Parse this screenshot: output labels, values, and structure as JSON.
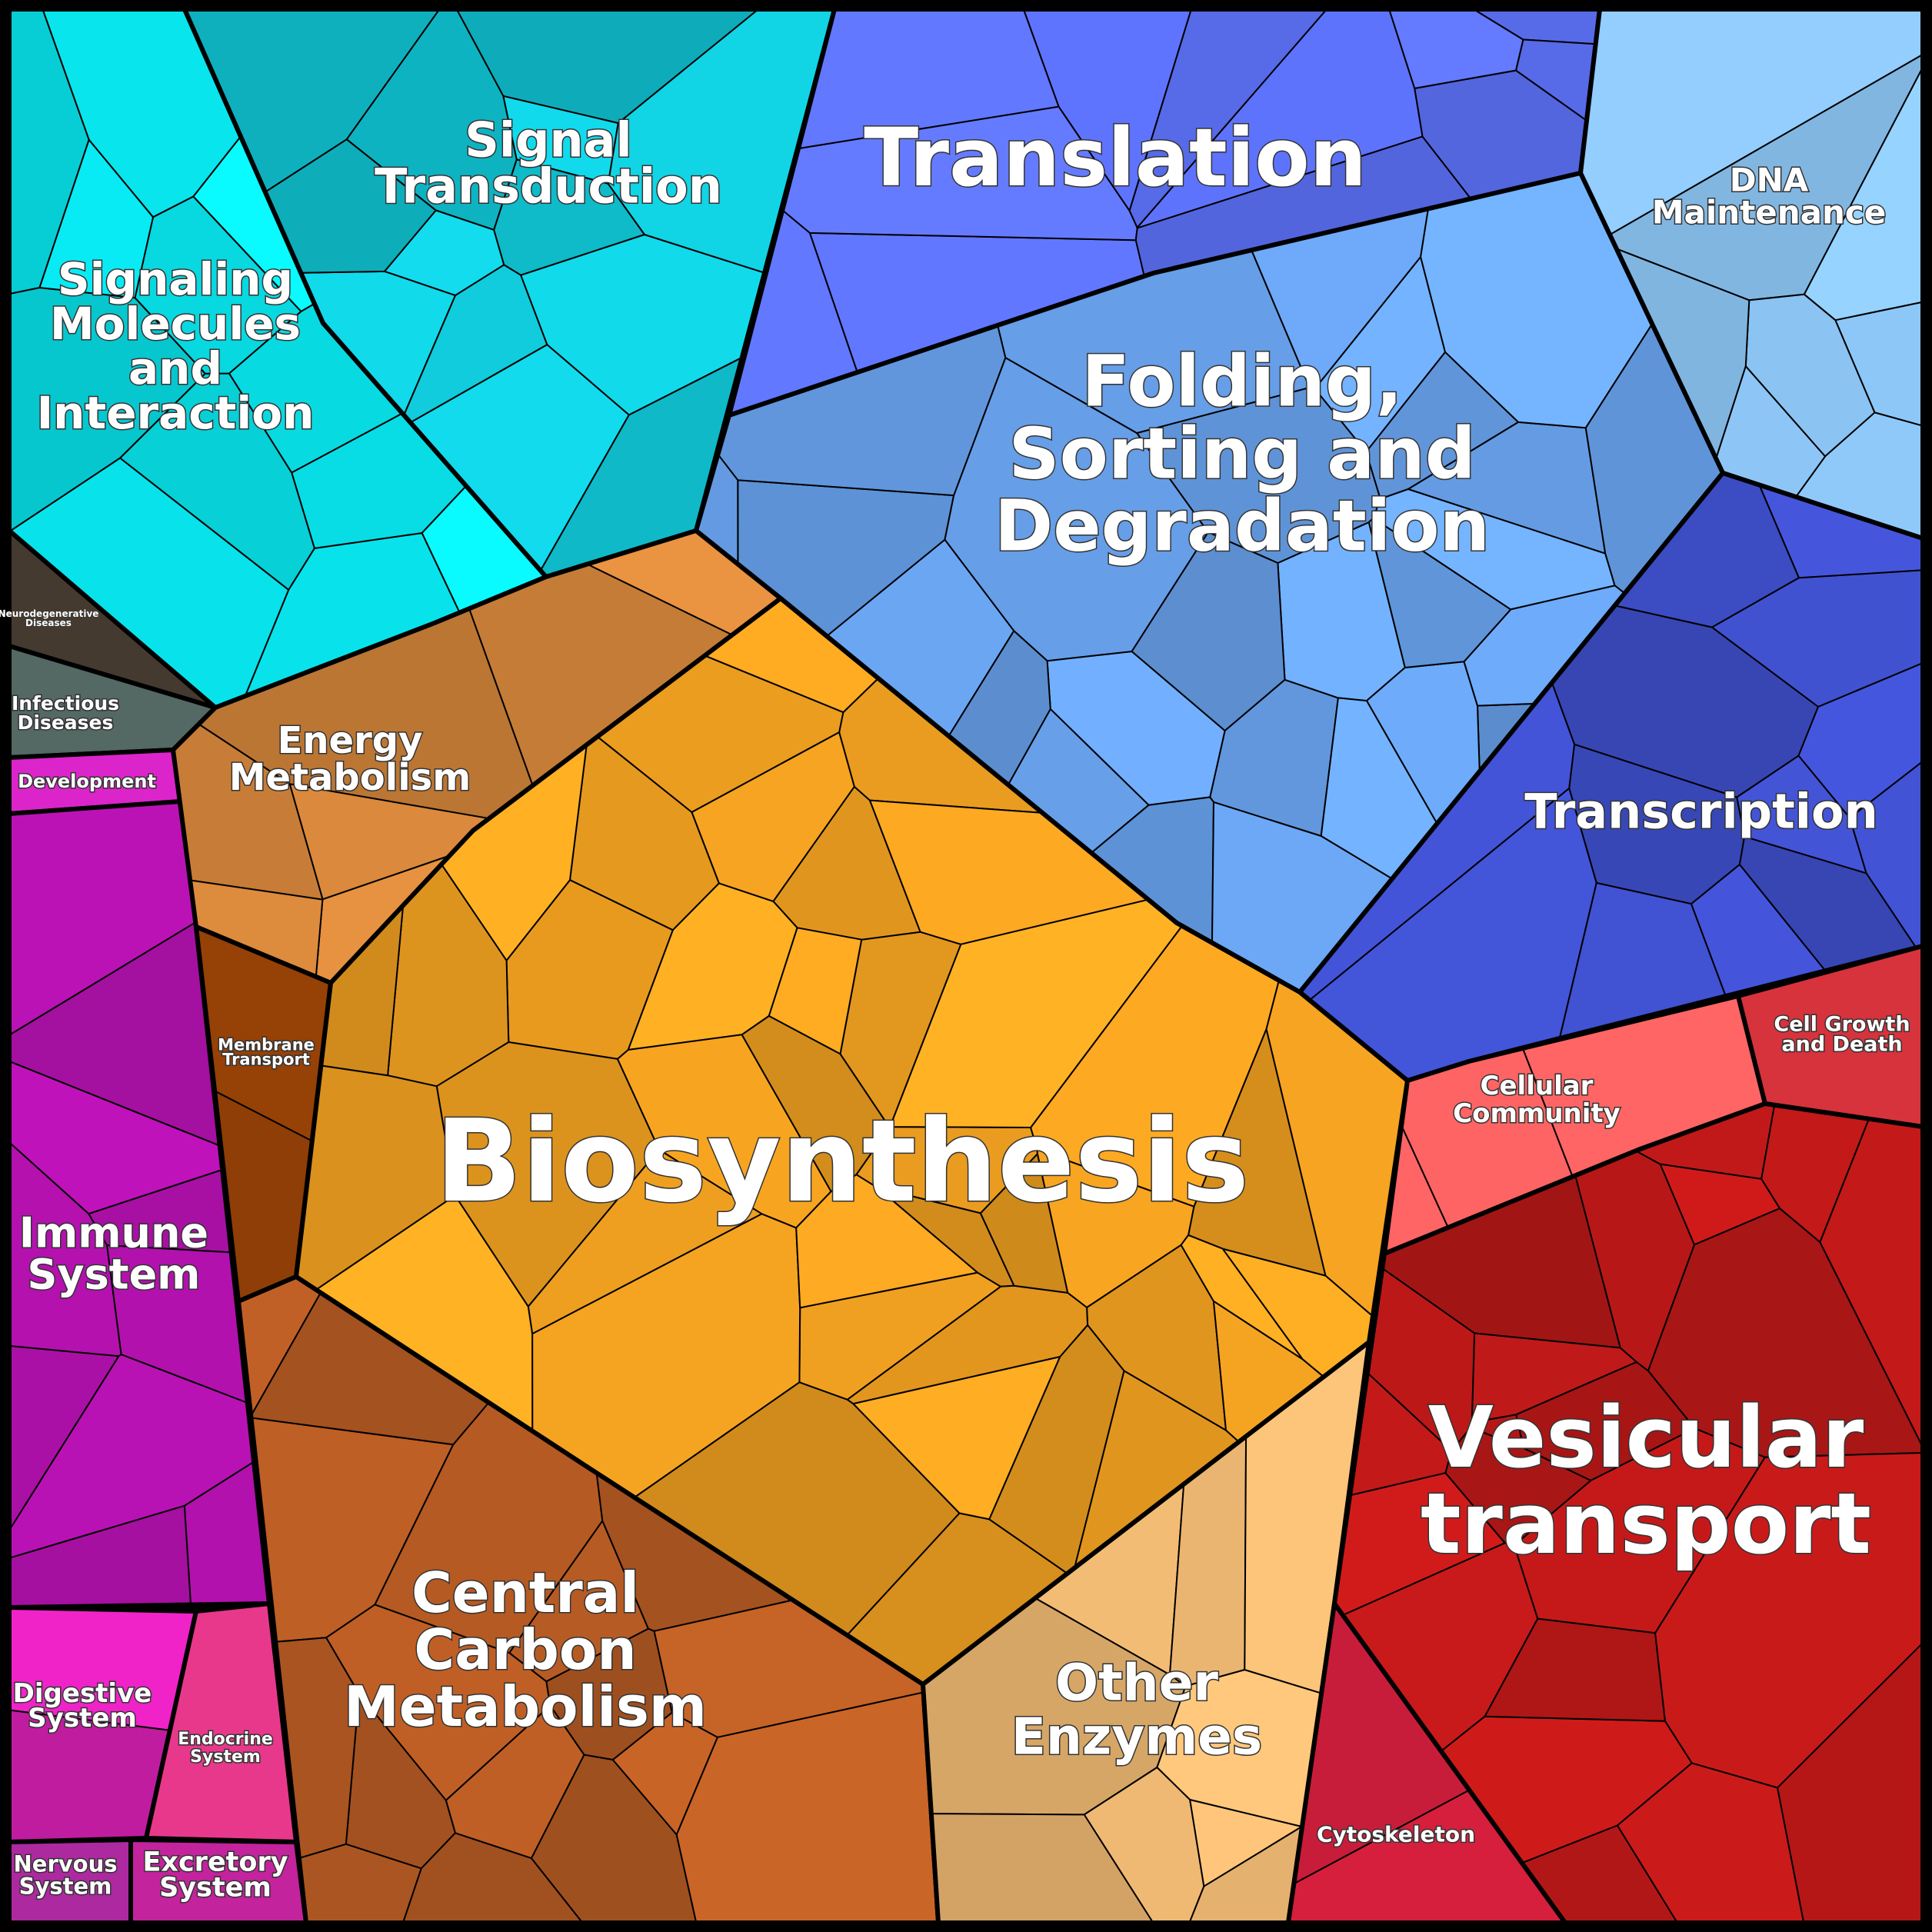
{
  "labels": {
    "signaling_molecules": [
      "Signaling",
      "Molecules",
      "and",
      "Interaction"
    ],
    "signal_transduction": [
      "Signal",
      "Transduction"
    ],
    "translation": [
      "Translation"
    ],
    "dna_maintenance": [
      "DNA",
      "Maintenance"
    ],
    "folding": [
      "Folding,",
      "Sorting and",
      "Degradation"
    ],
    "neurodegenerative": [
      "Neurodegenerative",
      "Diseases"
    ],
    "infectious": [
      "Infectious",
      "Diseases"
    ],
    "development": [
      "Development"
    ],
    "energy_metabolism": [
      "Energy",
      "Metabolism"
    ],
    "transcription": [
      "Transcription"
    ],
    "membrane_transport": [
      "Membrane",
      "Transport"
    ],
    "biosynthesis": [
      "Biosynthesis"
    ],
    "cellular_community": [
      "Cellular",
      "Community"
    ],
    "cell_growth": [
      "Cell Growth",
      "and Death"
    ],
    "immune_system": [
      "Immune",
      "System"
    ],
    "vesicular_transport": [
      "Vesicular",
      "transport"
    ],
    "central_carbon": [
      "Central",
      "Carbon",
      "Metabolism"
    ],
    "other_enzymes": [
      "Other",
      "Enzymes"
    ],
    "digestive_system": [
      "Digestive",
      "System"
    ],
    "endocrine_system": [
      "Endocrine",
      "System"
    ],
    "cytoskeleton": [
      "Cytoskeleton"
    ],
    "nervous_system": [
      "Nervous",
      "System"
    ],
    "excretory_system": [
      "Excretory",
      "System"
    ]
  },
  "colors": {
    "signaling_molecules": "#08e4ec",
    "signal_transduction": "#10c8d8",
    "translation": "#5a6ef0",
    "dna_maintenance": "#8ec8f8",
    "folding": "#6aa4f0",
    "transcription": "#3e4ec8",
    "neurodegenerative": "#4a3e34",
    "infectious": "#5e7470",
    "development": "#ee28dc",
    "immune_system": "#bb12b6",
    "digestive_system": "#dc20b8",
    "endocrine_system": "#f03a90",
    "nervous_system": "#c830b8",
    "excretory_system": "#e028b4",
    "energy_metabolism": "#d8883c",
    "membrane_transport": "#8e3e06",
    "biosynthesis": "#f0a020",
    "central_carbon": "#b85c24",
    "other_enzymes": "#e8b470",
    "cellular_community": "#ff5c5c",
    "cell_growth": "#f23a44",
    "vesicular_transport": "#bc1818",
    "cytoskeleton": "#de2040"
  }
}
